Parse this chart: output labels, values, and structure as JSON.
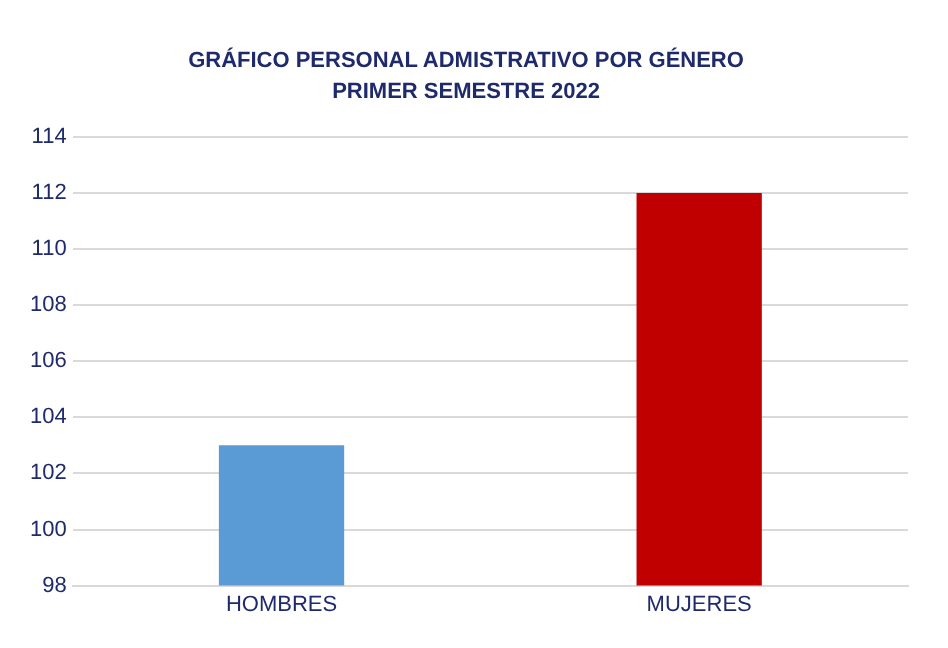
{
  "chart_data": {
    "type": "bar",
    "title": "GRÁFICO PERSONAL ADMISTRATIVO POR GÉNERO",
    "subtitle": "PRIMER SEMESTRE 2022",
    "categories": [
      "HOMBRES",
      "MUJERES"
    ],
    "values": [
      103,
      112
    ],
    "colors": [
      "#5b9bd5",
      "#c00000"
    ],
    "ylim": [
      98,
      114
    ],
    "yticks": [
      98,
      100,
      102,
      104,
      106,
      108,
      110,
      112,
      114
    ],
    "grid": "y"
  }
}
